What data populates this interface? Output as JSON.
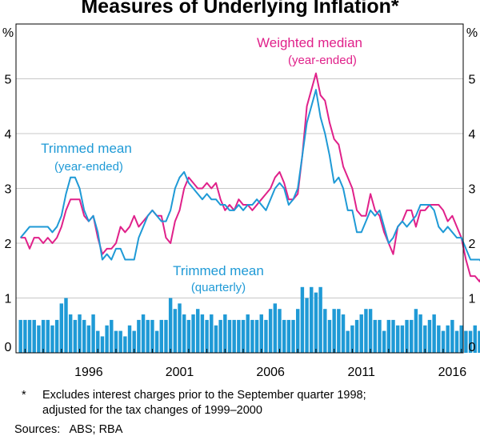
{
  "chart_data": {
    "type": "bar+line",
    "title": "Measures of Underlying Inflation*",
    "y_unit_label": "%",
    "ylim": [
      0,
      6
    ],
    "yticks": [
      0,
      1,
      2,
      3,
      4,
      5
    ],
    "xlim": [
      1992.5,
      2017.1
    ],
    "xticks": [
      {
        "label": "1996",
        "year": 1996.5
      },
      {
        "label": "2001",
        "year": 2001.5
      },
      {
        "label": "2006",
        "year": 2006.5
      },
      {
        "label": "2011",
        "year": 2011.5
      },
      {
        "label": "2016",
        "year": 2016.5
      }
    ],
    "series": [
      {
        "name": "Weighted median",
        "label_line1": "Weighted median",
        "label_line2": "(year-ended)",
        "color": "#e0218a",
        "type": "line",
        "start": 1992.75,
        "step": 0.25,
        "values": [
          2.1,
          2.1,
          1.9,
          2.1,
          2.1,
          2.0,
          2.1,
          2.0,
          2.1,
          2.3,
          2.6,
          2.8,
          2.8,
          2.8,
          2.5,
          2.4,
          2.5,
          2.1,
          1.8,
          1.9,
          1.9,
          2.0,
          2.3,
          2.2,
          2.3,
          2.5,
          2.3,
          2.4,
          2.5,
          2.6,
          2.5,
          2.5,
          2.1,
          2.0,
          2.4,
          2.6,
          3.0,
          3.2,
          3.1,
          3.0,
          3.0,
          3.1,
          3.0,
          3.1,
          2.8,
          2.6,
          2.7,
          2.6,
          2.8,
          2.7,
          2.7,
          2.6,
          2.7,
          2.8,
          2.9,
          3.0,
          3.2,
          3.3,
          3.1,
          2.8,
          2.8,
          2.9,
          3.6,
          4.5,
          4.8,
          5.1,
          4.7,
          4.6,
          4.2,
          3.9,
          3.8,
          3.4,
          3.2,
          3.0,
          2.6,
          2.5,
          2.5,
          2.9,
          2.6,
          2.5,
          2.2,
          2.0,
          1.8,
          2.3,
          2.4,
          2.6,
          2.6,
          2.3,
          2.6,
          2.6,
          2.7,
          2.7,
          2.7,
          2.6,
          2.4,
          2.5,
          2.3,
          2.1,
          1.7,
          1.4,
          1.4,
          1.3,
          1.5
        ]
      },
      {
        "name": "Trimmed mean (year-ended)",
        "label_line1": "Trimmed mean",
        "label_line2": "(year-ended)",
        "color": "#1f9ad6",
        "type": "line",
        "start": 1992.75,
        "step": 0.25,
        "values": [
          2.1,
          2.2,
          2.3,
          2.3,
          2.3,
          2.3,
          2.3,
          2.2,
          2.3,
          2.5,
          2.9,
          3.2,
          3.2,
          3.0,
          2.6,
          2.4,
          2.5,
          2.2,
          1.7,
          1.8,
          1.7,
          1.9,
          1.9,
          1.7,
          1.7,
          1.7,
          2.1,
          2.3,
          2.5,
          2.6,
          2.5,
          2.4,
          2.4,
          2.6,
          3.0,
          3.2,
          3.3,
          3.1,
          3.0,
          2.9,
          2.8,
          2.9,
          2.8,
          2.8,
          2.7,
          2.7,
          2.6,
          2.6,
          2.7,
          2.6,
          2.7,
          2.7,
          2.8,
          2.7,
          2.6,
          2.8,
          3.0,
          3.1,
          3.0,
          2.7,
          2.8,
          3.0,
          3.6,
          4.2,
          4.5,
          4.8,
          4.3,
          4.0,
          3.6,
          3.1,
          3.2,
          3.0,
          2.6,
          2.6,
          2.2,
          2.2,
          2.4,
          2.6,
          2.5,
          2.6,
          2.3,
          2.0,
          2.1,
          2.3,
          2.4,
          2.3,
          2.4,
          2.5,
          2.7,
          2.7,
          2.7,
          2.6,
          2.3,
          2.2,
          2.3,
          2.2,
          2.1,
          2.1,
          1.9,
          1.7,
          1.7,
          1.7,
          1.6
        ]
      },
      {
        "name": "Trimmed mean (quarterly)",
        "label_line1": "Trimmed mean",
        "label_line2": "(quarterly)",
        "color": "#1f9ad6",
        "type": "bar",
        "start": 1992.75,
        "step": 0.25,
        "values": [
          0.6,
          0.6,
          0.6,
          0.6,
          0.5,
          0.6,
          0.6,
          0.5,
          0.6,
          0.9,
          1.0,
          0.7,
          0.6,
          0.7,
          0.6,
          0.5,
          0.7,
          0.4,
          0.3,
          0.5,
          0.6,
          0.4,
          0.4,
          0.3,
          0.5,
          0.4,
          0.6,
          0.7,
          0.6,
          0.6,
          0.4,
          0.6,
          0.6,
          1.0,
          0.8,
          0.9,
          0.7,
          0.6,
          0.7,
          0.8,
          0.7,
          0.6,
          0.7,
          0.5,
          0.6,
          0.7,
          0.6,
          0.6,
          0.6,
          0.6,
          0.7,
          0.6,
          0.6,
          0.7,
          0.6,
          0.8,
          0.9,
          0.8,
          0.6,
          0.6,
          0.6,
          0.8,
          1.2,
          1.0,
          1.2,
          1.1,
          1.2,
          0.8,
          0.6,
          0.8,
          0.8,
          0.7,
          0.4,
          0.5,
          0.6,
          0.7,
          0.8,
          0.8,
          0.6,
          0.6,
          0.4,
          0.6,
          0.6,
          0.5,
          0.5,
          0.6,
          0.6,
          0.8,
          0.7,
          0.5,
          0.6,
          0.7,
          0.5,
          0.4,
          0.5,
          0.6,
          0.4,
          0.5,
          0.4,
          0.4,
          0.5,
          0.4,
          0.4
        ]
      }
    ]
  },
  "footnote": {
    "marker": "*",
    "line1": "Excludes interest charges prior to the September quarter 1998;",
    "line2": "adjusted for the tax changes of 1999–2000"
  },
  "sources": "Sources:   ABS; RBA"
}
